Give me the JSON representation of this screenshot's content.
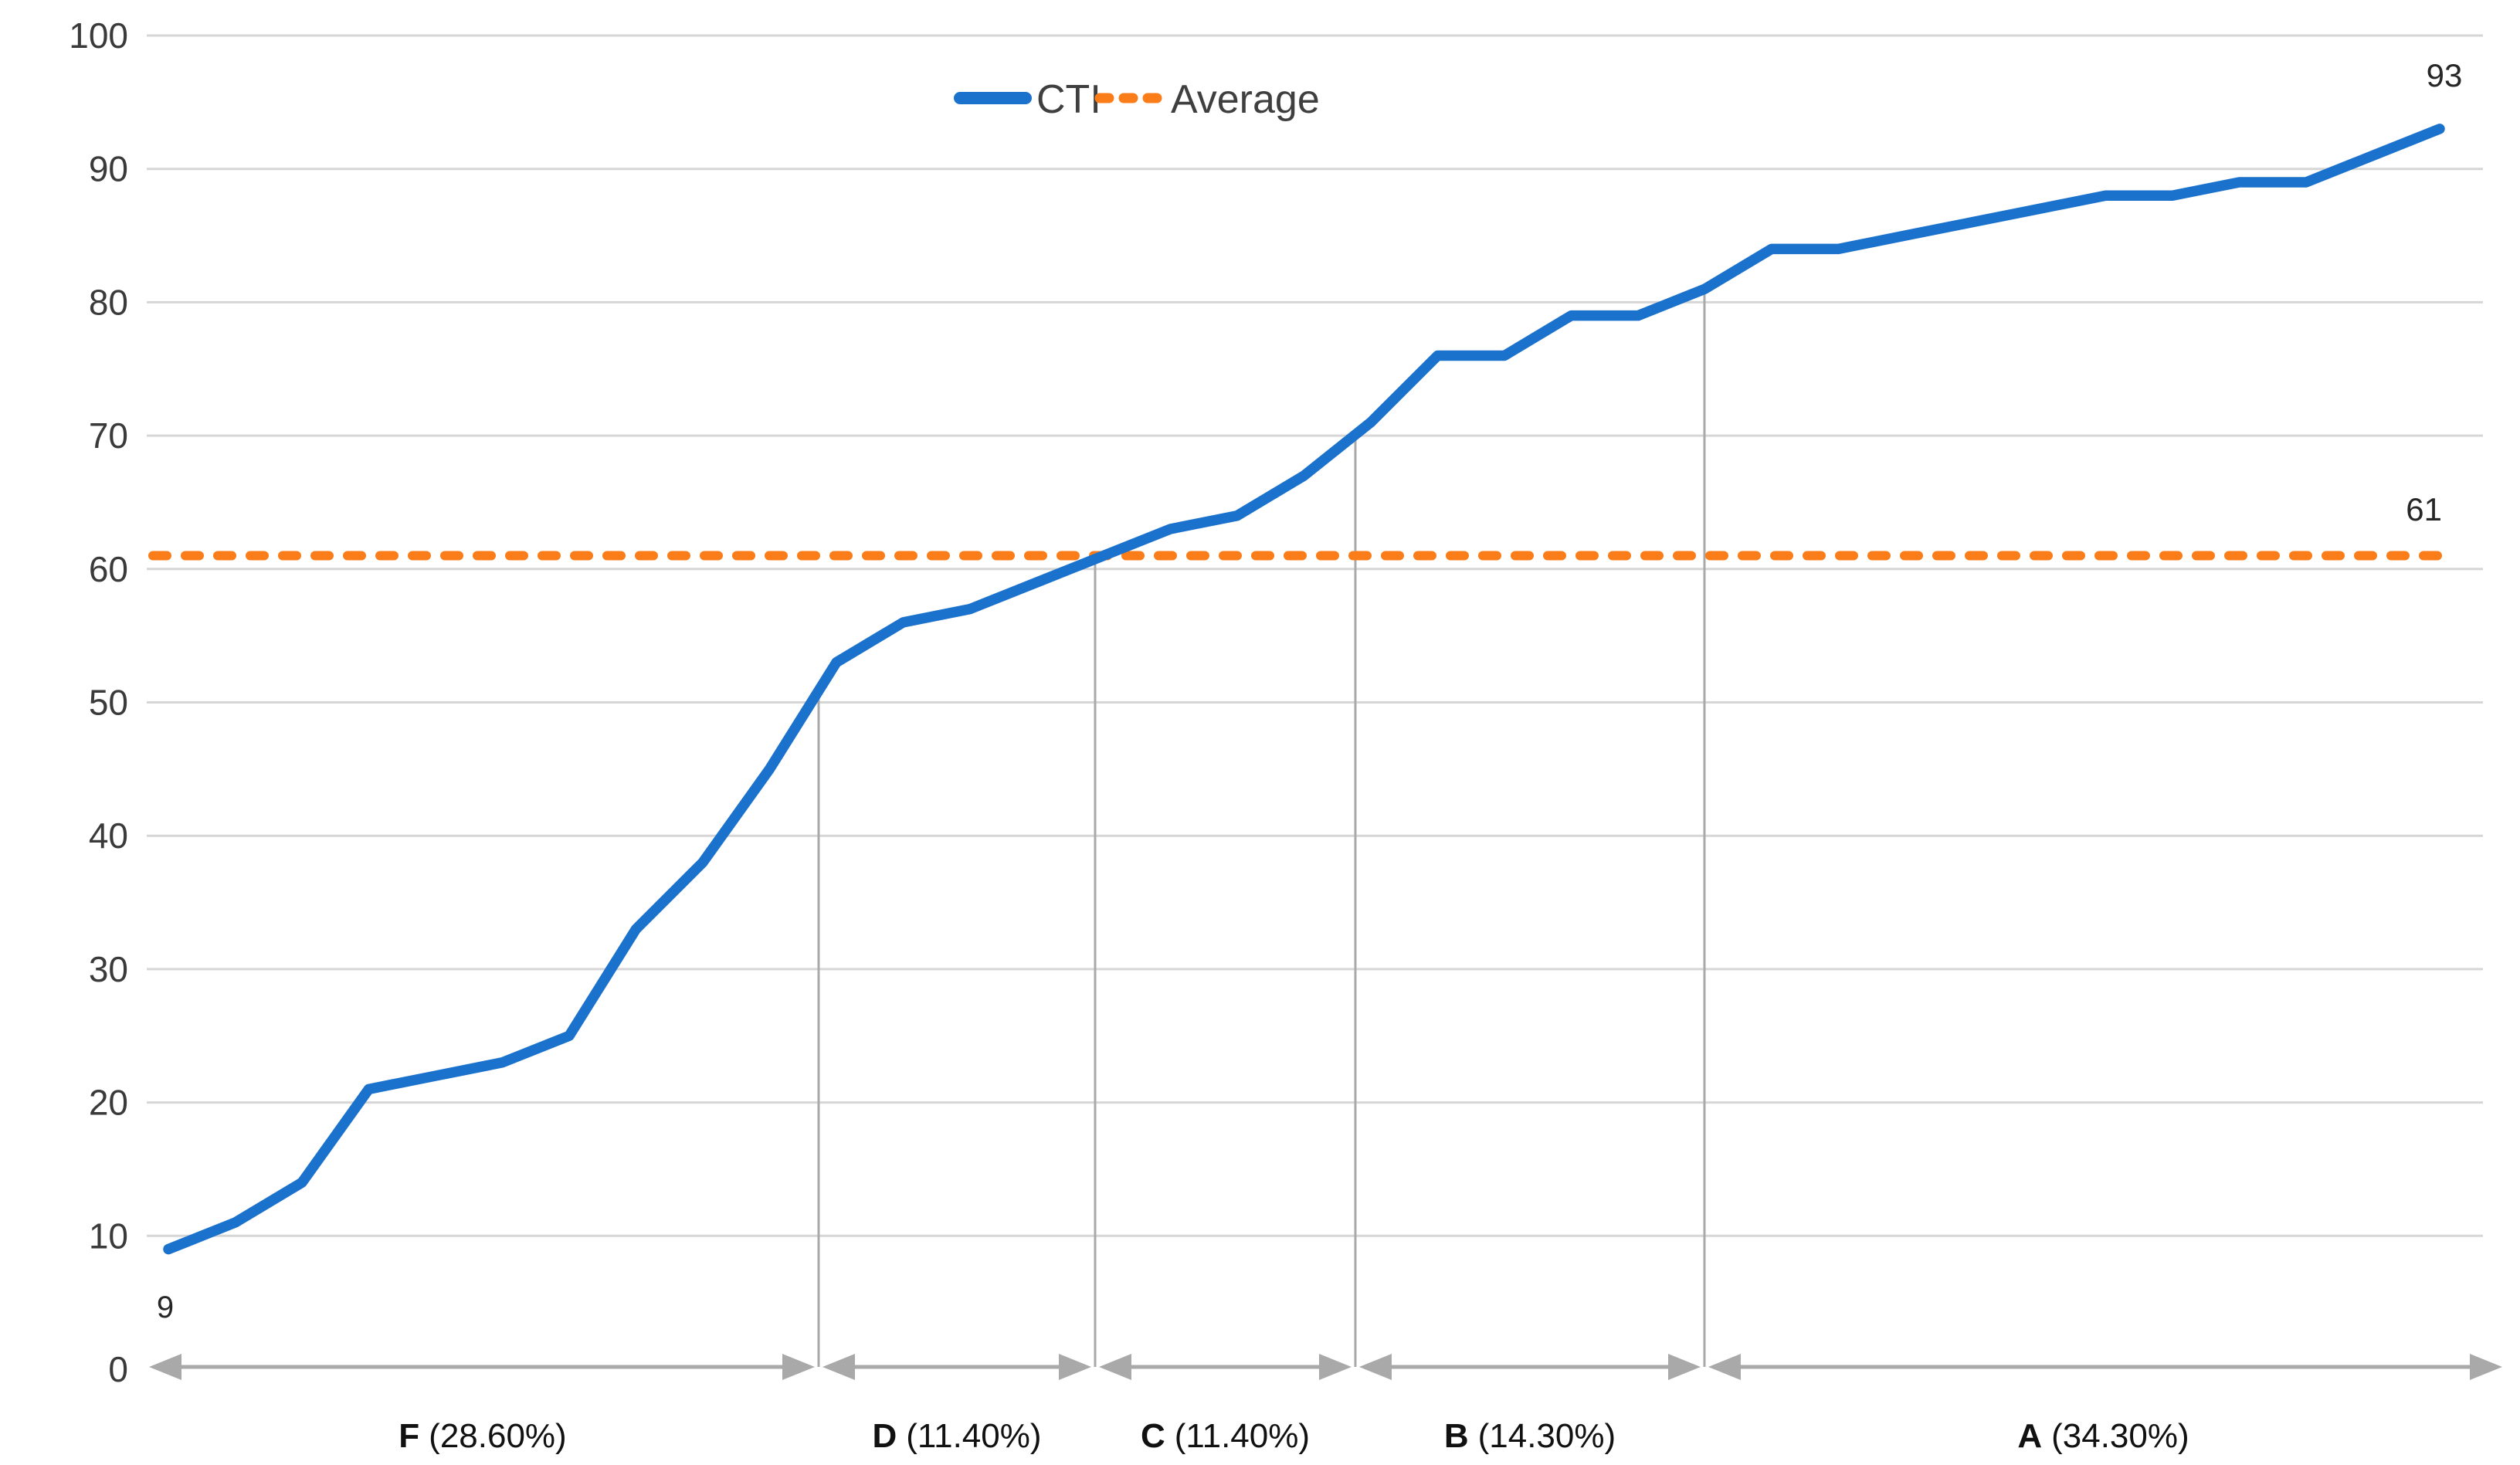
{
  "chart_data": {
    "type": "line",
    "title": "",
    "series": [
      {
        "name": "CTI",
        "values": [
          9,
          11,
          14,
          21,
          22,
          23,
          25,
          33,
          38,
          45,
          53,
          56,
          57,
          59,
          61,
          63,
          64,
          67,
          71,
          76,
          76,
          79,
          79,
          81,
          84,
          84,
          85,
          86,
          87,
          88,
          88,
          89,
          89,
          91,
          93
        ]
      }
    ],
    "average": {
      "name": "Average",
      "value": 61
    },
    "ylim": [
      0,
      100
    ],
    "yticks": [
      0,
      10,
      20,
      30,
      40,
      50,
      60,
      70,
      80,
      90,
      100
    ],
    "grid": true,
    "legend_position": "top-center",
    "point_labels": {
      "first": "9",
      "last": "93",
      "average": "61"
    },
    "regions": [
      {
        "grade": "F",
        "pct": "(28.60%)",
        "count": 10
      },
      {
        "grade": "D",
        "pct": "(11.40%)",
        "count": 4
      },
      {
        "grade": "C",
        "pct": "(11.40%)",
        "count": 4
      },
      {
        "grade": "B",
        "pct": "(14.30%)",
        "count": 5
      },
      {
        "grade": "A",
        "pct": "(34.30%)",
        "count": 12
      }
    ]
  },
  "legend": {
    "cti": "CTI",
    "average": "Average"
  },
  "colors": {
    "line": "#1B72CC",
    "average": "#FA7D1A",
    "grid": "#D6D6D6",
    "divider": "#A9A9A9",
    "axis_text": "#3A3A3A",
    "label_text": "#262626",
    "region_text": "#111111"
  }
}
